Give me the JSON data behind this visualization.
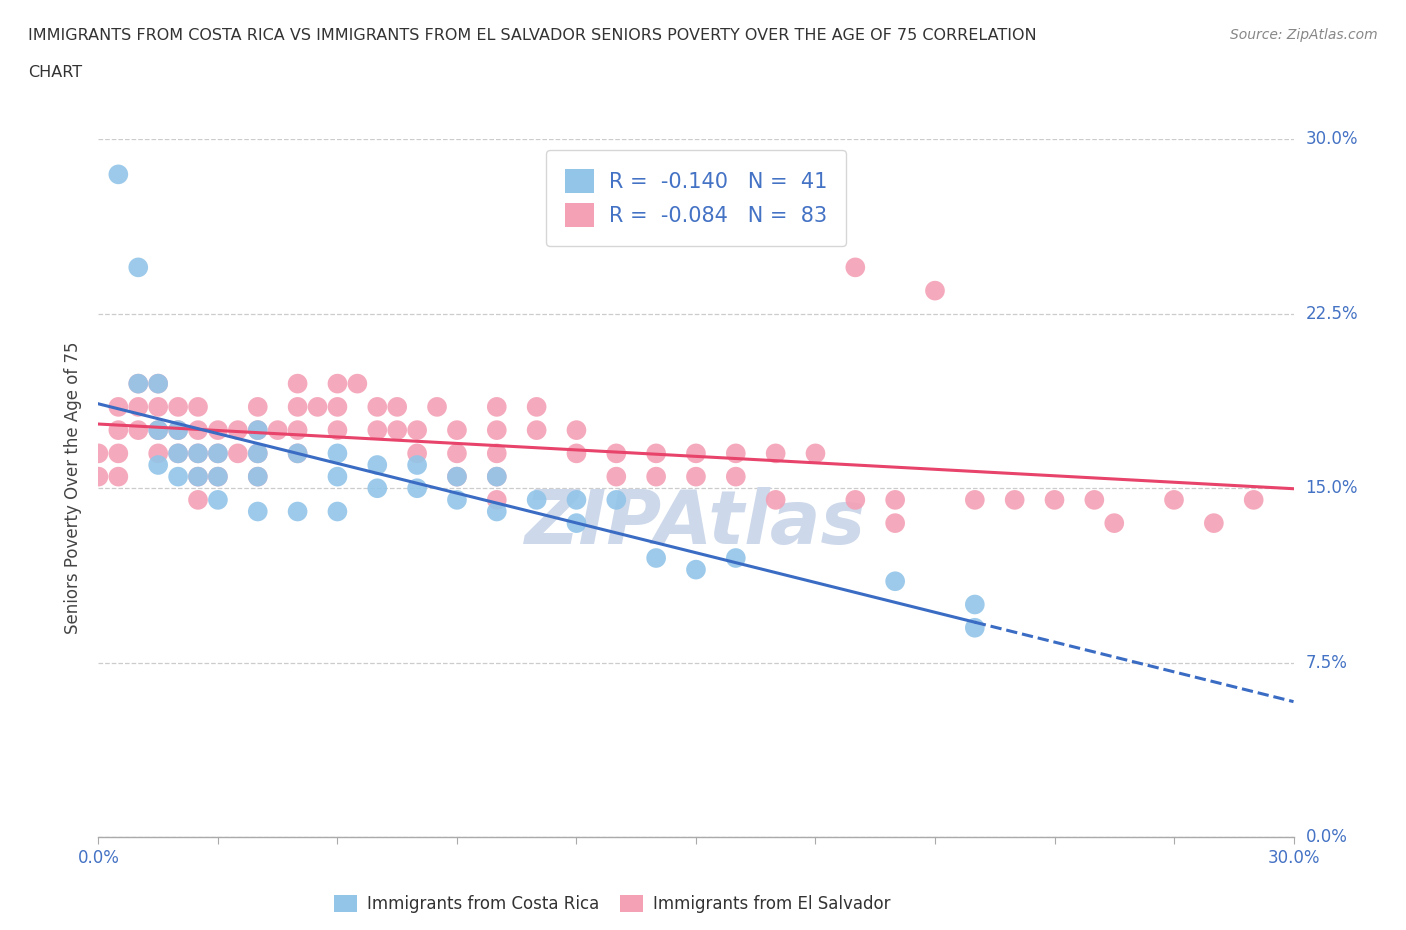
{
  "title_line1": "IMMIGRANTS FROM COSTA RICA VS IMMIGRANTS FROM EL SALVADOR SENIORS POVERTY OVER THE AGE OF 75 CORRELATION",
  "title_line2": "CHART",
  "source": "Source: ZipAtlas.com",
  "ylabel": "Seniors Poverty Over the Age of 75",
  "xmin": 0.0,
  "xmax": 0.3,
  "ymin": 0.0,
  "ymax": 0.3,
  "legend_r_cr": "-0.140",
  "legend_n_cr": "41",
  "legend_r_es": "-0.084",
  "legend_n_es": "83",
  "color_cr": "#92C5E8",
  "color_es": "#F4A0B5",
  "trendline_cr": "#3B6CC4",
  "trendline_es": "#E8436A",
  "watermark_color": "#CDD8EA",
  "ytick_vals": [
    0.0,
    0.075,
    0.15,
    0.225,
    0.3
  ],
  "ytick_labels": [
    "0.0%",
    "7.5%",
    "15.0%",
    "22.5%",
    "30.0%"
  ],
  "xtick_vals": [
    0.0,
    0.03,
    0.06,
    0.09,
    0.12,
    0.15,
    0.18,
    0.21,
    0.24,
    0.27,
    0.3
  ],
  "tick_color": "#4472C4",
  "cr_x": [
    0.005,
    0.01,
    0.01,
    0.015,
    0.015,
    0.015,
    0.02,
    0.02,
    0.02,
    0.025,
    0.025,
    0.03,
    0.03,
    0.03,
    0.04,
    0.04,
    0.04,
    0.04,
    0.05,
    0.05,
    0.06,
    0.06,
    0.06,
    0.07,
    0.07,
    0.08,
    0.08,
    0.09,
    0.09,
    0.1,
    0.1,
    0.11,
    0.12,
    0.12,
    0.13,
    0.14,
    0.15,
    0.16,
    0.2,
    0.22,
    0.22
  ],
  "cr_y": [
    0.285,
    0.245,
    0.195,
    0.195,
    0.175,
    0.16,
    0.175,
    0.165,
    0.155,
    0.165,
    0.155,
    0.165,
    0.155,
    0.145,
    0.175,
    0.165,
    0.155,
    0.14,
    0.165,
    0.14,
    0.165,
    0.155,
    0.14,
    0.16,
    0.15,
    0.16,
    0.15,
    0.155,
    0.145,
    0.155,
    0.14,
    0.145,
    0.145,
    0.135,
    0.145,
    0.12,
    0.115,
    0.12,
    0.11,
    0.1,
    0.09
  ],
  "es_x": [
    0.0,
    0.0,
    0.005,
    0.005,
    0.005,
    0.005,
    0.01,
    0.01,
    0.01,
    0.015,
    0.015,
    0.015,
    0.015,
    0.02,
    0.02,
    0.02,
    0.025,
    0.025,
    0.025,
    0.025,
    0.025,
    0.03,
    0.03,
    0.03,
    0.035,
    0.035,
    0.04,
    0.04,
    0.04,
    0.04,
    0.045,
    0.05,
    0.05,
    0.05,
    0.05,
    0.055,
    0.06,
    0.06,
    0.06,
    0.065,
    0.07,
    0.07,
    0.075,
    0.075,
    0.08,
    0.08,
    0.085,
    0.09,
    0.09,
    0.09,
    0.1,
    0.1,
    0.1,
    0.1,
    0.1,
    0.11,
    0.11,
    0.12,
    0.12,
    0.13,
    0.13,
    0.14,
    0.14,
    0.15,
    0.15,
    0.16,
    0.16,
    0.17,
    0.17,
    0.18,
    0.19,
    0.19,
    0.2,
    0.2,
    0.21,
    0.22,
    0.23,
    0.24,
    0.25,
    0.255,
    0.27,
    0.28,
    0.29
  ],
  "es_y": [
    0.165,
    0.155,
    0.185,
    0.175,
    0.165,
    0.155,
    0.195,
    0.185,
    0.175,
    0.195,
    0.185,
    0.175,
    0.165,
    0.185,
    0.175,
    0.165,
    0.185,
    0.175,
    0.165,
    0.155,
    0.145,
    0.175,
    0.165,
    0.155,
    0.175,
    0.165,
    0.185,
    0.175,
    0.165,
    0.155,
    0.175,
    0.195,
    0.185,
    0.175,
    0.165,
    0.185,
    0.195,
    0.185,
    0.175,
    0.195,
    0.185,
    0.175,
    0.185,
    0.175,
    0.175,
    0.165,
    0.185,
    0.175,
    0.165,
    0.155,
    0.185,
    0.175,
    0.165,
    0.155,
    0.145,
    0.185,
    0.175,
    0.175,
    0.165,
    0.165,
    0.155,
    0.165,
    0.155,
    0.165,
    0.155,
    0.165,
    0.155,
    0.165,
    0.145,
    0.165,
    0.145,
    0.245,
    0.145,
    0.135,
    0.235,
    0.145,
    0.145,
    0.145,
    0.145,
    0.135,
    0.145,
    0.135,
    0.145
  ]
}
